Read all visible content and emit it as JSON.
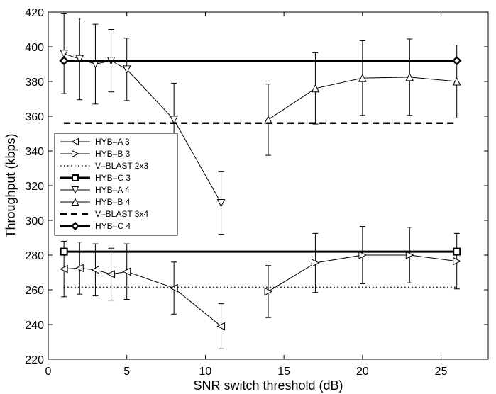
{
  "chart_data": {
    "type": "line",
    "title": "",
    "xlabel": "SNR switch threshold (dB)",
    "ylabel": "Throughput (kbps)",
    "xlim": [
      0,
      28
    ],
    "ylim": [
      220,
      420
    ],
    "xticks": [
      0,
      5,
      10,
      15,
      20,
      25
    ],
    "yticks": [
      220,
      240,
      260,
      280,
      300,
      320,
      340,
      360,
      380,
      400,
      420
    ],
    "grid": false,
    "legend_position": "middle-left",
    "series": [
      {
        "name": "HYB–A 3",
        "marker": "triangle-left",
        "line": "thin",
        "x": [
          1,
          2,
          3,
          4,
          5,
          8,
          11
        ],
        "y": [
          272,
          272.5,
          271.5,
          269,
          270.5,
          261,
          239
        ],
        "err": [
          16,
          15,
          15,
          15,
          16,
          15,
          13
        ]
      },
      {
        "name": "HYB–B 3",
        "marker": "triangle-right",
        "line": "thin",
        "x": [
          14,
          17,
          20,
          23,
          26
        ],
        "y": [
          259,
          275.5,
          280,
          280,
          276.5
        ],
        "err": [
          15,
          17,
          16.5,
          16,
          16
        ]
      },
      {
        "name": "V–BLAST 2x3",
        "marker": "none",
        "line": "dotted",
        "x": [
          1,
          26
        ],
        "y": [
          261.5,
          261.5
        ],
        "err": []
      },
      {
        "name": "HYB–C 3",
        "marker": "square",
        "line": "thick",
        "x": [
          1,
          26
        ],
        "y": [
          282,
          282
        ],
        "err": []
      },
      {
        "name": "HYB–A 4",
        "marker": "triangle-down",
        "line": "thin",
        "x": [
          1,
          2,
          3,
          4,
          5,
          8,
          11
        ],
        "y": [
          396,
          393,
          390,
          392,
          387,
          358,
          310
        ],
        "err": [
          23,
          23.5,
          23,
          18,
          18,
          21,
          18
        ]
      },
      {
        "name": "HYB–B 4",
        "marker": "triangle-up",
        "line": "thin",
        "x": [
          14,
          17,
          20,
          23,
          26
        ],
        "y": [
          358,
          376,
          382,
          382.5,
          380
        ],
        "err": [
          20.5,
          20.5,
          21.5,
          22,
          21
        ]
      },
      {
        "name": "V–BLAST 3x4",
        "marker": "none",
        "line": "dashed",
        "x": [
          1,
          26
        ],
        "y": [
          356,
          356
        ],
        "err": []
      },
      {
        "name": "HYB–C 4",
        "marker": "diamond",
        "line": "thick",
        "x": [
          1,
          26
        ],
        "y": [
          392,
          392
        ],
        "err": []
      }
    ]
  }
}
